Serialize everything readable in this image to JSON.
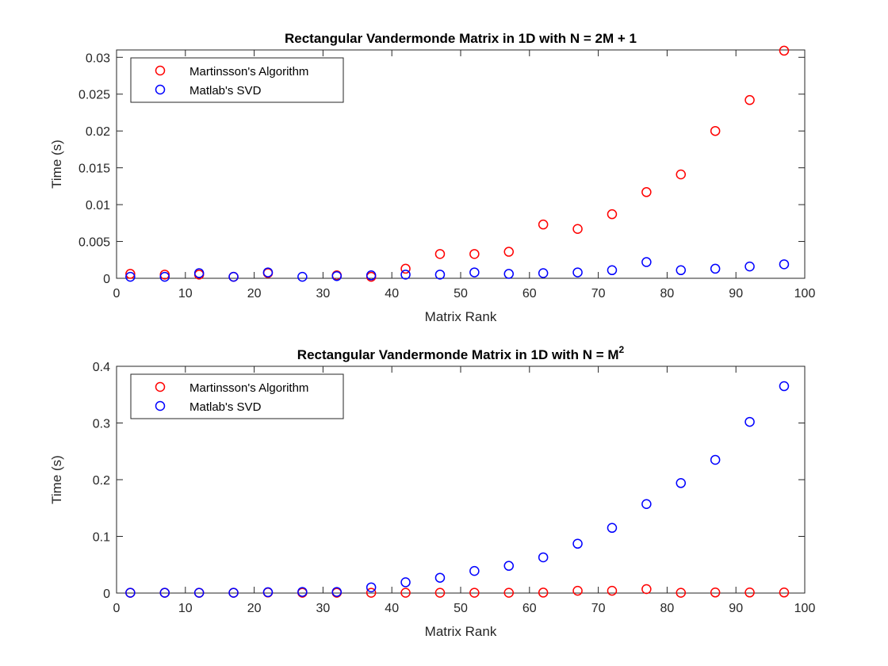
{
  "chart_data": [
    {
      "type": "scatter",
      "title": "Rectangular Vandermonde Matrix in 1D with N = 2M + 1",
      "xlabel": "Matrix Rank",
      "ylabel": "Time (s)",
      "xlim": [
        0,
        100
      ],
      "ylim": [
        0,
        0.031
      ],
      "xticks": [
        0,
        10,
        20,
        30,
        40,
        50,
        60,
        70,
        80,
        90,
        100
      ],
      "yticks": [
        0,
        0.005,
        0.01,
        0.015,
        0.02,
        0.025,
        0.03
      ],
      "ytick_labels": [
        "0",
        "0.005",
        "0.01",
        "0.015",
        "0.02",
        "0.025",
        "0.03"
      ],
      "grid": false,
      "legend_position": "top-left",
      "x": [
        2,
        7,
        12,
        17,
        22,
        27,
        32,
        37,
        42,
        47,
        52,
        57,
        62,
        67,
        72,
        77,
        82,
        87,
        92,
        97
      ],
      "series": [
        {
          "name": "Martinsson's Algorithm",
          "color": "#ff0000",
          "marker": "circle-open",
          "values": [
            0.0006,
            0.0005,
            0.0005,
            0.0002,
            0.0007,
            null,
            0.0004,
            0.0002,
            0.0013,
            0.0033,
            0.0033,
            0.0036,
            0.0073,
            0.0067,
            0.0087,
            0.0117,
            0.0141,
            0.02,
            0.0242,
            0.0309
          ]
        },
        {
          "name": "Matlab's SVD",
          "color": "#0000ff",
          "marker": "circle-open",
          "values": [
            0.0002,
            0.0002,
            0.0007,
            0.0002,
            0.0008,
            0.0002,
            0.0003,
            0.0004,
            0.0005,
            0.0005,
            0.0008,
            0.0006,
            0.0007,
            0.0008,
            0.0011,
            0.0022,
            0.0011,
            0.0013,
            0.0016,
            0.0019
          ]
        }
      ]
    },
    {
      "type": "scatter",
      "title": "Rectangular Vandermonde Matrix in 1D with N = M",
      "title_superscript": "2",
      "xlabel": "Matrix Rank",
      "ylabel": "Time (s)",
      "xlim": [
        0,
        100
      ],
      "ylim": [
        0,
        0.4
      ],
      "xticks": [
        0,
        10,
        20,
        30,
        40,
        50,
        60,
        70,
        80,
        90,
        100
      ],
      "yticks": [
        0,
        0.1,
        0.2,
        0.3,
        0.4
      ],
      "ytick_labels": [
        "0",
        "0.1",
        "0.2",
        "0.3",
        "0.4"
      ],
      "grid": false,
      "legend_position": "top-left",
      "x": [
        2,
        7,
        12,
        17,
        22,
        27,
        32,
        37,
        42,
        47,
        52,
        57,
        62,
        67,
        72,
        77,
        82,
        87,
        92,
        97
      ],
      "series": [
        {
          "name": "Martinsson's Algorithm",
          "color": "#ff0000",
          "marker": "circle-open",
          "values": [
            0.0005,
            0.0005,
            0.0005,
            0.0005,
            0.001,
            0.0005,
            0.0005,
            0.0005,
            0.0005,
            0.0005,
            0.0005,
            0.0005,
            0.0008,
            0.004,
            0.004,
            0.007,
            0.0005,
            0.001,
            0.001,
            0.001
          ]
        },
        {
          "name": "Matlab's SVD",
          "color": "#0000ff",
          "marker": "circle-open",
          "values": [
            0.0005,
            0.0005,
            0.0005,
            0.0005,
            0.0015,
            0.002,
            0.002,
            0.01,
            0.019,
            0.027,
            0.039,
            0.048,
            0.063,
            0.087,
            0.115,
            0.157,
            0.194,
            0.235,
            0.302,
            0.365
          ]
        }
      ]
    }
  ]
}
